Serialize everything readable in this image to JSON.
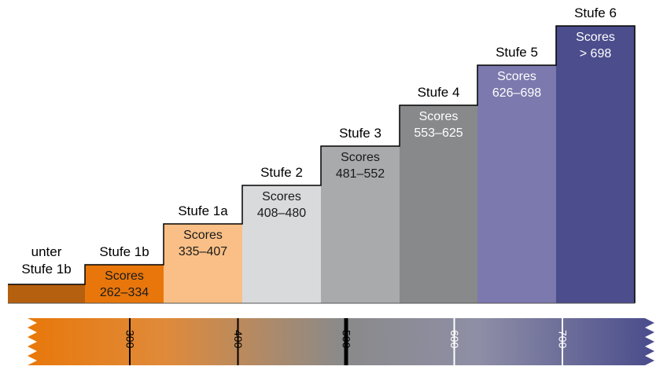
{
  "levels": [
    {
      "name": "unter Stufe 1b",
      "color": "#b5600f",
      "text_color": "#000000"
    },
    {
      "name": "Stufe 1b",
      "score_label": "Scores",
      "range": "262–334",
      "color": "#e8760b",
      "text_color": "#1a1a1a"
    },
    {
      "name": "Stufe 1a",
      "score_label": "Scores",
      "range": "335–407",
      "color": "#f9bf86",
      "text_color": "#1a1a1a"
    },
    {
      "name": "Stufe 2",
      "score_label": "Scores",
      "range": "408–480",
      "color": "#d9dadc",
      "text_color": "#1a1a1a"
    },
    {
      "name": "Stufe 3",
      "score_label": "Scores",
      "range": "481–552",
      "color": "#a9aaac",
      "text_color": "#1a1a1a"
    },
    {
      "name": "Stufe 4",
      "score_label": "Scores",
      "range": "553–625",
      "color": "#88898a",
      "text_color": "#ffffff"
    },
    {
      "name": "Stufe 5",
      "score_label": "Scores",
      "range": "626–698",
      "color": "#7b79ad",
      "text_color": "#ffffff"
    },
    {
      "name": "Stufe 6",
      "score_label": "Scores",
      "range": "> 698",
      "color": "#4b4d8c",
      "text_color": "#ffffff"
    }
  ],
  "scale": {
    "ticks": [
      300,
      400,
      500,
      600,
      700
    ],
    "tick_colors": [
      "#000000",
      "#000000",
      "#000000",
      "#ffffff",
      "#ffffff"
    ]
  }
}
